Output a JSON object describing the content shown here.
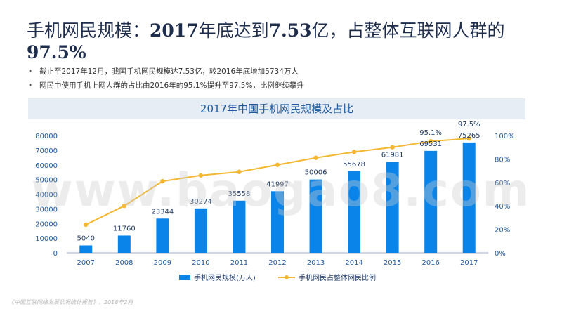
{
  "slide": {
    "title_prefix": "手机网民规模：",
    "title_year": "2017",
    "title_mid": "年底达到",
    "title_value": "7.53",
    "title_suffix": "亿，占整体互联网人群的",
    "title_pct": "97.5%",
    "bullets": [
      "截止至2017年12月，我国手机网民规模达7.53亿，较2016年底增加5734万人",
      "网民中使用手机上网人群的占比由2016年的95.1%提升至97.5%，比例继续攀升"
    ],
    "source": "《中国互联网络发展状况统计报告》，2018年2月",
    "watermark": "www.baogao8.com"
  },
  "chart_data": {
    "type": "bar",
    "title": "2017年中国手机网民规模及占比",
    "categories": [
      "2007",
      "2008",
      "2009",
      "2010",
      "2011",
      "2012",
      "2013",
      "2014",
      "2015",
      "2016",
      "2017"
    ],
    "series": [
      {
        "name": "手机网民规模(万人)",
        "type": "bar",
        "axis": "left",
        "values": [
          5040,
          11760,
          23344,
          30274,
          35558,
          41997,
          50006,
          55678,
          61981,
          69531,
          75265
        ],
        "labels": [
          "5040",
          "11760",
          "23344",
          "30274",
          "35558",
          "41997",
          "50006",
          "55678",
          "61981",
          "69531",
          "75265"
        ]
      },
      {
        "name": "手机网民占整体网民比例",
        "type": "line",
        "axis": "right",
        "values": [
          24,
          40,
          61,
          66,
          69,
          75,
          81,
          86,
          90,
          95.1,
          97.5
        ],
        "labels": [
          "",
          "",
          "",
          "",
          "",
          "",
          "",
          "",
          "",
          "95.1%",
          "97.5%"
        ]
      }
    ],
    "left_axis_ticks": [
      "0",
      "10000",
      "20000",
      "30000",
      "40000",
      "50000",
      "60000",
      "70000",
      "80000"
    ],
    "right_axis_ticks": [
      "0%",
      "20%",
      "40%",
      "60%",
      "80%",
      "100%"
    ],
    "ylim_left": [
      0,
      80000
    ],
    "ylim_right": [
      0,
      100
    ],
    "colors": {
      "bar": "#0a84e8",
      "line": "#f4b731"
    },
    "legend": "bottom"
  }
}
